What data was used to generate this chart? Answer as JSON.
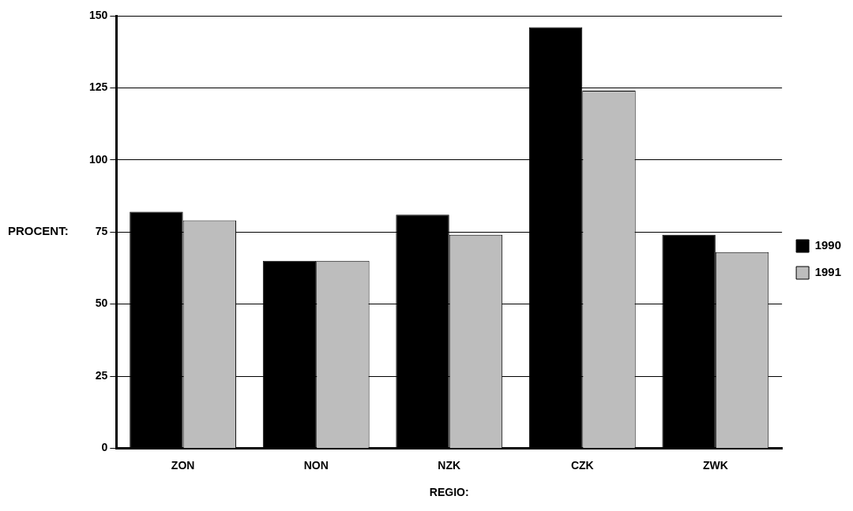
{
  "chart_data": {
    "type": "bar",
    "xlabel": "REGIO:",
    "ylabel": "PROCENT:",
    "categories": [
      "ZON",
      "NON",
      "NZK",
      "CZK",
      "ZWK"
    ],
    "series": [
      {
        "name": "1990",
        "color": "#000000",
        "values": [
          82,
          65,
          81,
          146,
          74
        ]
      },
      {
        "name": "1991",
        "color": "#bdbdbd",
        "values": [
          79,
          65,
          74,
          124,
          68
        ]
      }
    ],
    "ylim": [
      0,
      150
    ],
    "yticks": [
      0,
      25,
      50,
      75,
      100,
      125,
      150
    ],
    "grid": "y",
    "legend": "right"
  }
}
